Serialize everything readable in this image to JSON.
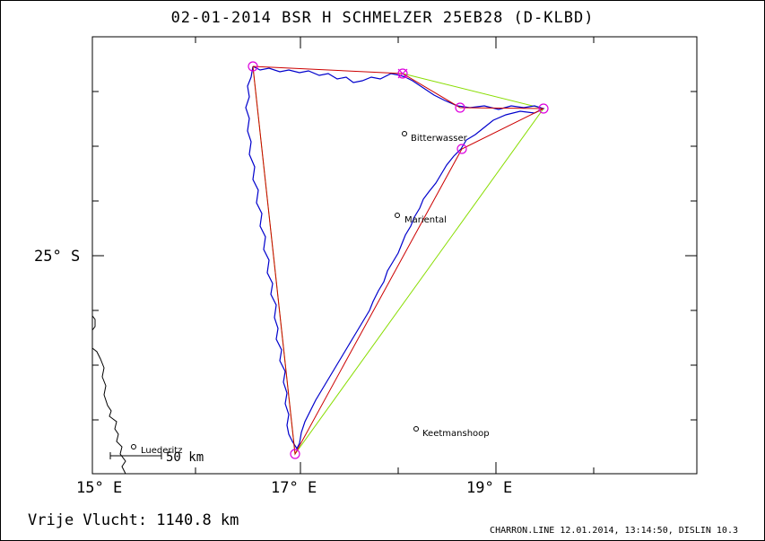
{
  "title": "02-01-2014   BSR H SCHMELZER   25EB28 (D-KLBD)",
  "axes": {
    "lat_label": "25° S",
    "lon_labels": [
      "15° E",
      "17° E",
      "19° E"
    ]
  },
  "scale_bar": "50 km",
  "towns": [
    "Bitterwasser",
    "Mariental",
    "Keetmanshoop",
    "Luederitz"
  ],
  "colors": {
    "track": "#0000cc",
    "task": "#cc0000",
    "optimized": "#88dd00",
    "turnpoints": "#dd00dd",
    "coast": "#000000"
  },
  "footer": {
    "distance": "Vrije Vlucht: 1140.8 km",
    "credit": "CHARRON.LINE 12.01.2014, 13:14:50, DISLIN 10.3"
  }
}
